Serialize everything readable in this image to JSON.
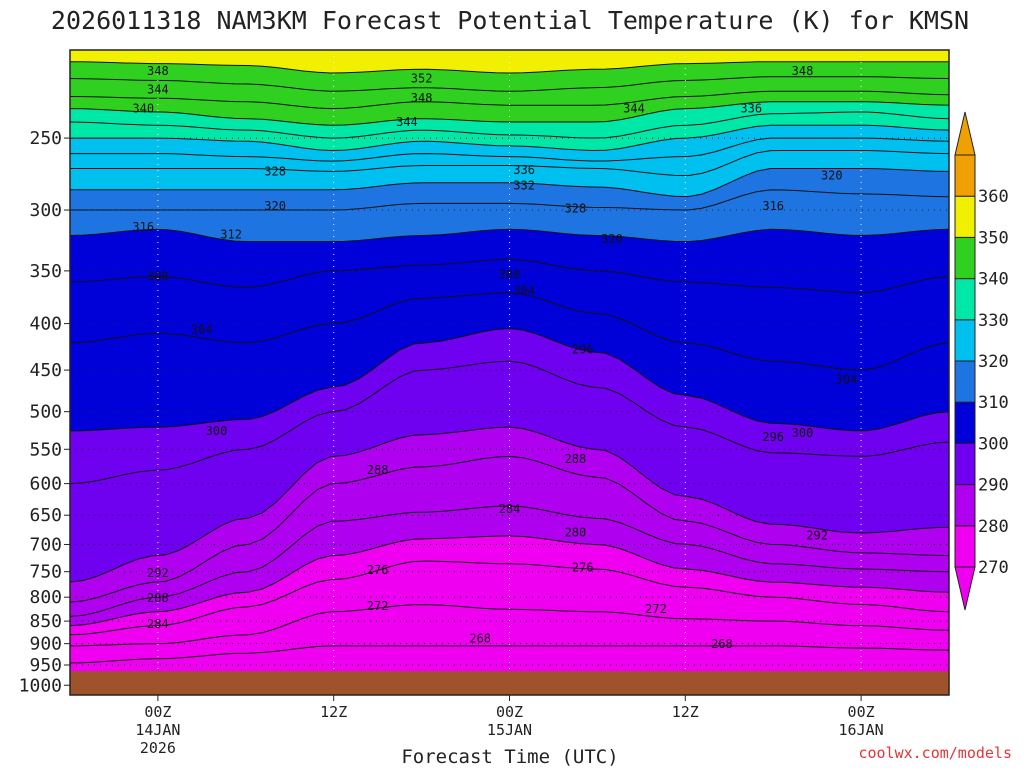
{
  "chart_data": {
    "type": "contour",
    "title": "2026011318 NAM3KM Forecast Potential Temperature (K) for KMSN",
    "xlabel": "Forecast Time (UTC)",
    "ylabel": "",
    "credit": "coolwx.com/models",
    "x_forecast_hours": [
      0,
      6,
      12,
      18,
      24,
      30,
      36,
      42,
      48,
      54,
      60
    ],
    "x_ticks": [
      {
        "hour": 6,
        "label": "00Z",
        "sub1": "14JAN",
        "sub2": "2026"
      },
      {
        "hour": 18,
        "label": "12Z",
        "sub1": "",
        "sub2": ""
      },
      {
        "hour": 30,
        "label": "00Z",
        "sub1": "15JAN",
        "sub2": ""
      },
      {
        "hour": 42,
        "label": "12Z",
        "sub1": "",
        "sub2": ""
      },
      {
        "hour": 54,
        "label": "00Z",
        "sub1": "16JAN",
        "sub2": ""
      }
    ],
    "xlim": [
      0,
      60
    ],
    "y_pressure_levels": [
      "250",
      "300",
      "350",
      "400",
      "450",
      "500",
      "550",
      "600",
      "650",
      "700",
      "750",
      "800",
      "850",
      "900",
      "950",
      "1000"
    ],
    "ylim_hPa": [
      200,
      1025
    ],
    "contour_interval_K": 2,
    "colorbar": {
      "levels": [
        270,
        280,
        290,
        300,
        310,
        320,
        330,
        340,
        350,
        360
      ],
      "labels": [
        "270",
        "280",
        "290",
        "300",
        "310",
        "320",
        "330",
        "340",
        "350",
        "360"
      ],
      "colors": [
        "#f000f0",
        "#b000f0",
        "#7000f0",
        "#0000d8",
        "#1e74e0",
        "#00c0f0",
        "#00e8a8",
        "#30d020",
        "#f0f000",
        "#f0a000"
      ]
    },
    "surface_color": "#a0522d",
    "series": [
      {
        "name": "theta_268",
        "values": [
          945,
          935,
          922,
          905,
          905,
          905,
          905,
          905,
          905,
          910,
          915
        ]
      },
      {
        "name": "theta_272",
        "values": [
          905,
          900,
          880,
          830,
          815,
          825,
          830,
          845,
          850,
          860,
          870
        ]
      },
      {
        "name": "theta_276",
        "values": [
          880,
          860,
          820,
          765,
          730,
          735,
          745,
          780,
          800,
          815,
          830
        ]
      },
      {
        "name": "theta_280",
        "values": [
          860,
          830,
          790,
          720,
          690,
          685,
          700,
          745,
          770,
          780,
          790
        ]
      },
      {
        "name": "theta_284",
        "values": [
          840,
          800,
          750,
          660,
          645,
          635,
          655,
          700,
          735,
          745,
          750
        ]
      },
      {
        "name": "theta_288",
        "values": [
          810,
          770,
          700,
          600,
          575,
          560,
          590,
          660,
          700,
          715,
          720
        ]
      },
      {
        "name": "theta_292",
        "values": [
          770,
          720,
          655,
          560,
          530,
          520,
          550,
          620,
          665,
          680,
          670
        ]
      },
      {
        "name": "theta_296",
        "values": [
          600,
          580,
          550,
          500,
          450,
          440,
          470,
          520,
          555,
          560,
          540
        ]
      },
      {
        "name": "theta_300",
        "values": [
          525,
          520,
          510,
          470,
          420,
          405,
          430,
          480,
          515,
          525,
          500
        ]
      },
      {
        "name": "theta_304",
        "values": [
          420,
          410,
          420,
          400,
          375,
          370,
          390,
          420,
          440,
          450,
          420
        ]
      },
      {
        "name": "theta_308",
        "values": [
          360,
          355,
          365,
          350,
          345,
          340,
          350,
          360,
          365,
          370,
          355
        ]
      },
      {
        "name": "theta_312",
        "values": [
          320,
          315,
          325,
          325,
          320,
          315,
          320,
          325,
          315,
          320,
          315
        ]
      },
      {
        "name": "theta_316",
        "values": [
          300,
          300,
          300,
          300,
          295,
          295,
          298,
          300,
          285,
          288,
          290
        ]
      },
      {
        "name": "theta_320",
        "values": [
          285,
          285,
          285,
          285,
          280,
          280,
          283,
          290,
          270,
          270,
          272
        ]
      },
      {
        "name": "theta_324",
        "values": [
          270,
          270,
          270,
          272,
          268,
          268,
          270,
          275,
          258,
          258,
          260
        ]
      },
      {
        "name": "theta_328",
        "values": [
          260,
          260,
          262,
          265,
          260,
          262,
          265,
          262,
          250,
          250,
          252
        ]
      },
      {
        "name": "theta_332",
        "values": [
          250,
          250,
          252,
          258,
          252,
          255,
          258,
          250,
          242,
          242,
          245
        ]
      },
      {
        "name": "theta_336",
        "values": [
          240,
          242,
          245,
          250,
          245,
          248,
          250,
          242,
          235,
          234,
          238
        ]
      },
      {
        "name": "theta_340",
        "values": [
          232,
          234,
          238,
          242,
          238,
          240,
          240,
          232,
          228,
          228,
          230
        ]
      },
      {
        "name": "theta_344",
        "values": [
          225,
          226,
          228,
          232,
          228,
          230,
          230,
          225,
          222,
          222,
          224
        ]
      },
      {
        "name": "theta_348",
        "values": [
          215,
          216,
          218,
          222,
          220,
          222,
          220,
          216,
          214,
          214,
          215
        ]
      },
      {
        "name": "theta_352",
        "values": [
          206,
          207,
          208,
          212,
          210,
          212,
          210,
          207,
          206,
          206,
          206
        ]
      }
    ],
    "contour_labels": [
      {
        "text": "348",
        "hour": 6.0,
        "p": 211
      },
      {
        "text": "344",
        "hour": 6.0,
        "p": 221
      },
      {
        "text": "340",
        "hour": 5.0,
        "p": 232
      },
      {
        "text": "352",
        "hour": 24.0,
        "p": 215
      },
      {
        "text": "348",
        "hour": 24.0,
        "p": 226
      },
      {
        "text": "344",
        "hour": 23.0,
        "p": 240
      },
      {
        "text": "344",
        "hour": 38.5,
        "p": 232
      },
      {
        "text": "348",
        "hour": 50.0,
        "p": 211
      },
      {
        "text": "336",
        "hour": 46.5,
        "p": 232
      },
      {
        "text": "328",
        "hour": 14.0,
        "p": 272
      },
      {
        "text": "320",
        "hour": 14.0,
        "p": 297
      },
      {
        "text": "336",
        "hour": 31.0,
        "p": 271
      },
      {
        "text": "332",
        "hour": 31.0,
        "p": 282
      },
      {
        "text": "328",
        "hour": 34.5,
        "p": 299
      },
      {
        "text": "320",
        "hour": 37.0,
        "p": 323
      },
      {
        "text": "320",
        "hour": 52.0,
        "p": 275
      },
      {
        "text": "316",
        "hour": 48.0,
        "p": 297
      },
      {
        "text": "316",
        "hour": 5.0,
        "p": 313
      },
      {
        "text": "312",
        "hour": 11.0,
        "p": 319
      },
      {
        "text": "308",
        "hour": 6.0,
        "p": 355
      },
      {
        "text": "308",
        "hour": 30.0,
        "p": 353
      },
      {
        "text": "304",
        "hour": 31.0,
        "p": 368
      },
      {
        "text": "304",
        "hour": 9.0,
        "p": 406
      },
      {
        "text": "296",
        "hour": 35.0,
        "p": 427
      },
      {
        "text": "304",
        "hour": 53.0,
        "p": 461
      },
      {
        "text": "300",
        "hour": 10.0,
        "p": 525
      },
      {
        "text": "296",
        "hour": 48.0,
        "p": 533
      },
      {
        "text": "300",
        "hour": 50.0,
        "p": 528
      },
      {
        "text": "288",
        "hour": 21.0,
        "p": 580
      },
      {
        "text": "288",
        "hour": 34.5,
        "p": 564
      },
      {
        "text": "284",
        "hour": 30.0,
        "p": 640
      },
      {
        "text": "280",
        "hour": 34.5,
        "p": 679
      },
      {
        "text": "292",
        "hour": 51.0,
        "p": 684
      },
      {
        "text": "276",
        "hour": 35.0,
        "p": 742
      },
      {
        "text": "276",
        "hour": 21.0,
        "p": 747
      },
      {
        "text": "272",
        "hour": 21.0,
        "p": 818
      },
      {
        "text": "272",
        "hour": 40.0,
        "p": 824
      },
      {
        "text": "292",
        "hour": 6.0,
        "p": 752
      },
      {
        "text": "288",
        "hour": 6.0,
        "p": 802
      },
      {
        "text": "284",
        "hour": 6.0,
        "p": 856
      },
      {
        "text": "268",
        "hour": 28.0,
        "p": 888
      },
      {
        "text": "268",
        "hour": 44.5,
        "p": 901
      }
    ]
  }
}
